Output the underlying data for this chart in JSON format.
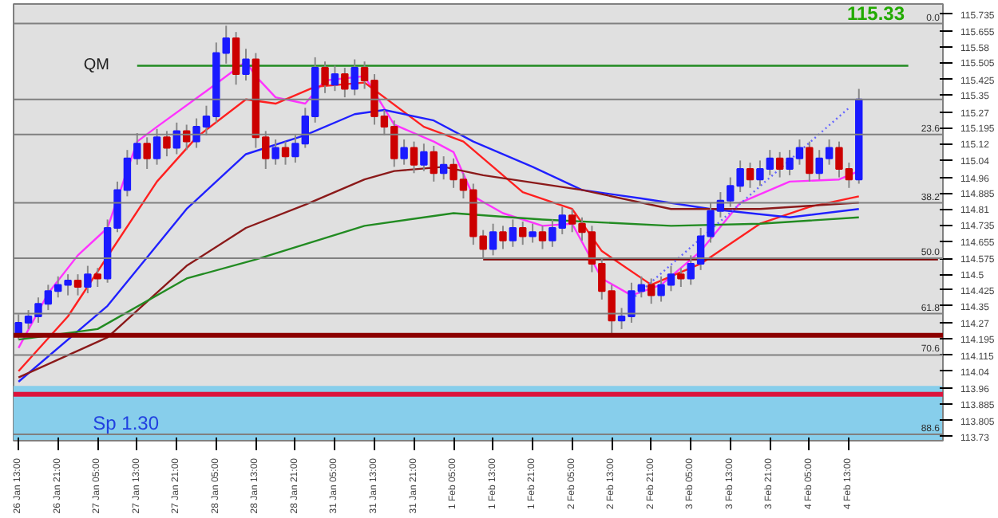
{
  "chart_data": {
    "type": "candlestick",
    "categories": [
      "26 Jan 13:00",
      null,
      null,
      null,
      "26 Jan 21:00",
      null,
      null,
      null,
      "27 Jan 05:00",
      null,
      null,
      null,
      "27 Jan 13:00",
      null,
      null,
      null,
      "27 Jan 21:00",
      null,
      null,
      null,
      "28 Jan 05:00",
      null,
      null,
      null,
      "28 Jan 13:00",
      null,
      null,
      null,
      "28 Jan 21:00",
      null,
      null,
      null,
      "31 Jan 05:00",
      null,
      null,
      null,
      "31 Jan 13:00",
      null,
      null,
      null,
      "31 Jan 21:00",
      null,
      null,
      null,
      "1 Feb 05:00",
      null,
      null,
      null,
      "1 Feb 13:00",
      null,
      null,
      null,
      "1 Feb 21:00",
      null,
      null,
      null,
      "2 Feb 05:00",
      null,
      null,
      null,
      "2 Feb 13:00",
      null,
      null,
      null,
      "2 Feb 21:00",
      null,
      null,
      null,
      "3 Feb 05:00",
      null,
      null,
      null,
      "3 Feb 13:00",
      null,
      null,
      null,
      "3 Feb 21:00",
      null,
      null,
      null,
      "4 Feb 05:00",
      null,
      null,
      null,
      "4 Feb 13:00",
      null,
      null,
      null,
      null,
      null,
      null,
      null,
      null,
      null
    ],
    "ohlc": [
      [
        114.22,
        114.31,
        114.19,
        114.27
      ],
      [
        114.27,
        114.33,
        114.24,
        114.3
      ],
      [
        114.3,
        114.39,
        114.27,
        114.36
      ],
      [
        114.36,
        114.45,
        114.33,
        114.42
      ],
      [
        114.42,
        114.49,
        114.39,
        114.45
      ],
      [
        114.45,
        114.5,
        114.4,
        114.47
      ],
      [
        114.47,
        114.5,
        114.4,
        114.44
      ],
      [
        114.44,
        114.54,
        114.41,
        114.5
      ],
      [
        114.5,
        114.53,
        114.44,
        114.48
      ],
      [
        114.48,
        114.76,
        114.46,
        114.72
      ],
      [
        114.72,
        114.94,
        114.7,
        114.9
      ],
      [
        114.9,
        115.09,
        114.87,
        115.05
      ],
      [
        115.05,
        115.17,
        115.02,
        115.12
      ],
      [
        115.12,
        115.15,
        115.0,
        115.05
      ],
      [
        115.05,
        115.19,
        115.02,
        115.15
      ],
      [
        115.15,
        115.18,
        115.06,
        115.1
      ],
      [
        115.1,
        115.22,
        115.07,
        115.18
      ],
      [
        115.18,
        115.21,
        115.09,
        115.13
      ],
      [
        115.13,
        115.24,
        115.1,
        115.2
      ],
      [
        115.2,
        115.3,
        115.16,
        115.25
      ],
      [
        115.25,
        115.6,
        115.22,
        115.55
      ],
      [
        115.55,
        115.68,
        115.5,
        115.62
      ],
      [
        115.62,
        115.65,
        115.4,
        115.45
      ],
      [
        115.45,
        115.57,
        115.42,
        115.52
      ],
      [
        115.52,
        115.55,
        115.1,
        115.15
      ],
      [
        115.15,
        115.18,
        115.0,
        115.05
      ],
      [
        115.05,
        115.14,
        115.02,
        115.1
      ],
      [
        115.1,
        115.13,
        115.02,
        115.06
      ],
      [
        115.06,
        115.16,
        115.03,
        115.12
      ],
      [
        115.12,
        115.29,
        115.1,
        115.25
      ],
      [
        115.25,
        115.53,
        115.22,
        115.48
      ],
      [
        115.48,
        115.51,
        115.36,
        115.4
      ],
      [
        115.4,
        115.49,
        115.37,
        115.45
      ],
      [
        115.45,
        115.48,
        115.34,
        115.38
      ],
      [
        115.38,
        115.52,
        115.35,
        115.48
      ],
      [
        115.48,
        115.51,
        115.38,
        115.42
      ],
      [
        115.42,
        115.45,
        115.21,
        115.25
      ],
      [
        115.25,
        115.28,
        115.16,
        115.2
      ],
      [
        115.2,
        115.23,
        115.01,
        115.05
      ],
      [
        115.05,
        115.14,
        115.02,
        115.1
      ],
      [
        115.1,
        115.13,
        114.98,
        115.02
      ],
      [
        115.02,
        115.12,
        114.99,
        115.08
      ],
      [
        115.08,
        115.11,
        114.94,
        114.98
      ],
      [
        114.98,
        115.06,
        114.95,
        115.02
      ],
      [
        115.02,
        115.05,
        114.91,
        114.95
      ],
      [
        114.95,
        114.98,
        114.86,
        114.9
      ],
      [
        114.9,
        114.93,
        114.64,
        114.68
      ],
      [
        114.68,
        114.71,
        114.58,
        114.62
      ],
      [
        114.62,
        114.74,
        114.59,
        114.7
      ],
      [
        114.7,
        114.73,
        114.62,
        114.66
      ],
      [
        114.66,
        114.76,
        114.63,
        114.72
      ],
      [
        114.72,
        114.75,
        114.64,
        114.68
      ],
      [
        114.68,
        114.74,
        114.65,
        114.7
      ],
      [
        114.7,
        114.73,
        114.62,
        114.66
      ],
      [
        114.66,
        114.76,
        114.63,
        114.72
      ],
      [
        114.72,
        114.82,
        114.69,
        114.78
      ],
      [
        114.78,
        114.81,
        114.7,
        114.74
      ],
      [
        114.74,
        114.77,
        114.66,
        114.7
      ],
      [
        114.7,
        114.73,
        114.51,
        114.55
      ],
      [
        114.55,
        114.58,
        114.38,
        114.42
      ],
      [
        114.42,
        114.45,
        114.22,
        114.28
      ],
      [
        114.28,
        114.34,
        114.24,
        114.3
      ],
      [
        114.3,
        114.46,
        114.27,
        114.42
      ],
      [
        114.42,
        114.49,
        114.39,
        114.45
      ],
      [
        114.45,
        114.48,
        114.36,
        114.4
      ],
      [
        114.4,
        114.49,
        114.37,
        114.45
      ],
      [
        114.45,
        114.54,
        114.42,
        114.5
      ],
      [
        114.5,
        114.53,
        114.44,
        114.48
      ],
      [
        114.48,
        114.59,
        114.45,
        114.55
      ],
      [
        114.55,
        114.72,
        114.52,
        114.68
      ],
      [
        114.68,
        114.84,
        114.65,
        114.8
      ],
      [
        114.8,
        114.89,
        114.77,
        114.85
      ],
      [
        114.85,
        114.96,
        114.82,
        114.92
      ],
      [
        114.92,
        115.04,
        114.89,
        115.0
      ],
      [
        115.0,
        115.03,
        114.91,
        114.95
      ],
      [
        114.95,
        115.04,
        114.92,
        115.0
      ],
      [
        115.0,
        115.09,
        114.97,
        115.05
      ],
      [
        115.05,
        115.08,
        114.96,
        115.0
      ],
      [
        115.0,
        115.09,
        114.97,
        115.05
      ],
      [
        115.05,
        115.14,
        115.02,
        115.1
      ],
      [
        115.1,
        115.13,
        114.94,
        114.98
      ],
      [
        114.98,
        115.09,
        114.95,
        115.05
      ],
      [
        115.05,
        115.14,
        115.02,
        115.1
      ],
      [
        115.1,
        115.13,
        114.96,
        115.0
      ],
      [
        115.0,
        115.03,
        114.91,
        114.95
      ],
      [
        114.95,
        115.38,
        114.93,
        115.33
      ],
      null,
      null,
      null,
      null,
      null,
      null,
      null,
      null
    ],
    "series": [
      {
        "type": "line",
        "color": "#ff33ff",
        "values": [
          114.15,
          null,
          null,
          114.41,
          null,
          null,
          114.59,
          null,
          null,
          114.72,
          null,
          null,
          115.13,
          null,
          115.2,
          null,
          null,
          null,
          null,
          115.37,
          null,
          null,
          null,
          115.51,
          115.44,
          null,
          115.34,
          null,
          null,
          115.31,
          null,
          115.42,
          null,
          null,
          null,
          115.44,
          null,
          null,
          115.21,
          null,
          null,
          null,
          115.13,
          null,
          115.08,
          null,
          114.87,
          null,
          null,
          114.79,
          null,
          null,
          null,
          114.73,
          null,
          null,
          114.74,
          null,
          null,
          114.48,
          null,
          null,
          114.4,
          null,
          null,
          114.45,
          null,
          null,
          null,
          114.61,
          null,
          null,
          null,
          114.84,
          null,
          null,
          null,
          null,
          114.94,
          null,
          null,
          null,
          null,
          114.95,
          null,
          114.99,
          null,
          null,
          null,
          null,
          null,
          null,
          null,
          null
        ]
      },
      {
        "type": "line",
        "color": "#ff2020",
        "values": [
          114.04,
          null,
          null,
          null,
          null,
          114.3,
          null,
          null,
          null,
          null,
          null,
          null,
          null,
          null,
          114.94,
          null,
          null,
          null,
          115.15,
          null,
          null,
          null,
          null,
          115.33,
          null,
          null,
          115.31,
          null,
          null,
          null,
          115.39,
          null,
          null,
          null,
          null,
          115.41,
          null,
          null,
          null,
          null,
          null,
          115.2,
          null,
          null,
          null,
          115.13,
          null,
          null,
          null,
          null,
          null,
          114.89,
          null,
          null,
          null,
          null,
          114.81,
          null,
          null,
          114.61,
          null,
          null,
          null,
          null,
          114.45,
          null,
          null,
          null,
          null,
          114.55,
          null,
          null,
          null,
          null,
          null,
          114.74,
          null,
          null,
          null,
          null,
          114.82,
          null,
          null,
          null,
          null,
          114.87,
          null,
          null,
          null,
          null,
          null,
          null,
          null,
          null
        ]
      },
      {
        "type": "line",
        "color": "#2020ff",
        "values": [
          113.99,
          null,
          null,
          null,
          null,
          null,
          null,
          null,
          null,
          114.35,
          null,
          null,
          null,
          null,
          null,
          null,
          null,
          114.81,
          null,
          null,
          null,
          null,
          null,
          115.07,
          null,
          null,
          null,
          null,
          null,
          115.16,
          null,
          null,
          null,
          null,
          115.26,
          null,
          null,
          115.28,
          null,
          null,
          null,
          null,
          115.23,
          null,
          null,
          null,
          115.13,
          null,
          null,
          null,
          null,
          null,
          115.01,
          null,
          null,
          null,
          null,
          114.9,
          null,
          null,
          null,
          null,
          null,
          114.86,
          null,
          null,
          null,
          null,
          null,
          null,
          114.81,
          null,
          null,
          null,
          null,
          null,
          null,
          null,
          114.77,
          null,
          null,
          null,
          null,
          null,
          null,
          114.81,
          null,
          null,
          null,
          null,
          null,
          null,
          null,
          null
        ]
      },
      {
        "type": "line",
        "color": "#8b1a1a",
        "values": [
          114.01,
          null,
          null,
          null,
          null,
          null,
          null,
          null,
          null,
          114.2,
          null,
          null,
          null,
          null,
          null,
          null,
          null,
          114.54,
          null,
          null,
          null,
          null,
          null,
          114.72,
          null,
          null,
          null,
          null,
          null,
          114.83,
          null,
          null,
          null,
          null,
          null,
          114.95,
          null,
          null,
          114.99,
          null,
          null,
          null,
          null,
          115.01,
          null,
          null,
          null,
          114.97,
          null,
          null,
          null,
          null,
          null,
          null,
          null,
          null,
          null,
          114.9,
          null,
          null,
          null,
          null,
          null,
          null,
          null,
          null,
          114.81,
          null,
          null,
          null,
          null,
          null,
          null,
          null,
          null,
          114.81,
          null,
          null,
          null,
          null,
          null,
          null,
          null,
          null,
          null,
          114.84,
          null,
          null,
          null,
          null,
          null,
          null,
          null,
          null
        ]
      },
      {
        "type": "line",
        "color": "#228b22",
        "values": [
          114.19,
          null,
          null,
          null,
          null,
          null,
          null,
          null,
          114.24,
          null,
          null,
          null,
          null,
          null,
          null,
          null,
          null,
          114.48,
          null,
          null,
          null,
          null,
          null,
          null,
          114.57,
          null,
          null,
          null,
          null,
          null,
          null,
          null,
          null,
          null,
          null,
          114.73,
          null,
          null,
          null,
          null,
          null,
          null,
          null,
          null,
          114.79,
          null,
          null,
          null,
          null,
          null,
          null,
          null,
          null,
          114.76,
          null,
          null,
          null,
          null,
          null,
          null,
          null,
          null,
          null,
          null,
          null,
          null,
          114.73,
          null,
          null,
          null,
          null,
          null,
          null,
          null,
          null,
          114.74,
          null,
          null,
          null,
          null,
          null,
          null,
          null,
          null,
          null,
          114.77,
          null,
          null,
          null,
          null,
          null,
          null,
          null,
          null
        ]
      },
      {
        "type": "line",
        "color": "#228b22",
        "values": [
          null,
          null,
          null,
          null,
          null,
          null,
          null,
          null,
          null,
          null,
          null,
          null,
          115.49,
          null,
          null,
          null,
          null,
          null,
          null,
          null,
          null,
          null,
          null,
          null,
          null,
          null,
          null,
          null,
          null,
          null,
          null,
          null,
          null,
          null,
          null,
          null,
          null,
          null,
          null,
          null,
          null,
          null,
          null,
          null,
          null,
          null,
          null,
          null,
          null,
          null,
          null,
          null,
          null,
          null,
          null,
          null,
          null,
          null,
          null,
          null,
          null,
          null,
          null,
          null,
          null,
          null,
          null,
          null,
          null,
          null,
          null,
          null,
          null,
          null,
          null,
          null,
          null,
          null,
          null,
          null,
          null,
          null,
          null,
          null,
          null,
          null,
          null,
          null,
          null,
          null,
          115.49,
          null,
          null,
          null
        ]
      },
      {
        "type": "line",
        "color": "#800000",
        "values": [
          null,
          null,
          null,
          null,
          null,
          null,
          null,
          null,
          null,
          null,
          null,
          null,
          null,
          null,
          null,
          null,
          null,
          null,
          null,
          null,
          null,
          null,
          null,
          null,
          null,
          null,
          null,
          null,
          null,
          null,
          null,
          null,
          null,
          null,
          null,
          null,
          null,
          null,
          null,
          null,
          null,
          null,
          null,
          null,
          null,
          null,
          null,
          114.57,
          null,
          null,
          null,
          null,
          null,
          null,
          null,
          null,
          null,
          null,
          null,
          null,
          null,
          null,
          null,
          null,
          null,
          null,
          null,
          null,
          null,
          null,
          null,
          null,
          null,
          null,
          null,
          null,
          null,
          null,
          null,
          null,
          null,
          null,
          null,
          null,
          null,
          null,
          null,
          null,
          null,
          null,
          null,
          null,
          null,
          114.57
        ]
      },
      {
        "type": "line",
        "color": "#6666ff",
        "line_style": "dotted",
        "values": [
          null,
          null,
          null,
          null,
          null,
          null,
          null,
          null,
          null,
          null,
          null,
          null,
          null,
          null,
          null,
          null,
          null,
          null,
          null,
          null,
          null,
          null,
          null,
          null,
          null,
          null,
          null,
          null,
          null,
          null,
          null,
          null,
          null,
          null,
          null,
          null,
          null,
          null,
          null,
          null,
          null,
          null,
          null,
          null,
          null,
          null,
          null,
          null,
          null,
          null,
          null,
          null,
          null,
          null,
          null,
          null,
          null,
          null,
          null,
          null,
          null,
          null,
          114.38,
          null,
          null,
          null,
          null,
          null,
          null,
          null,
          null,
          null,
          null,
          null,
          null,
          null,
          null,
          null,
          null,
          null,
          null,
          null,
          null,
          null,
          115.29,
          null,
          null,
          null,
          null,
          null,
          null,
          null,
          null,
          null
        ]
      }
    ],
    "ref_lines": [
      {
        "axis": "y",
        "value": 115.69,
        "color": "#808080"
      },
      {
        "axis": "y",
        "value": 115.33,
        "color": "#808080"
      },
      {
        "axis": "y",
        "value": 115.164,
        "color": "#808080"
      },
      {
        "axis": "y",
        "value": 114.839,
        "color": "#808080"
      },
      {
        "axis": "y",
        "value": 114.576,
        "color": "#808080"
      },
      {
        "axis": "y",
        "value": 114.313,
        "color": "#808080"
      },
      {
        "axis": "y",
        "value": 114.117,
        "color": "#808080"
      },
      {
        "axis": "y",
        "value": 113.74,
        "color": "#808080"
      },
      {
        "axis": "y",
        "value": 114.21,
        "color": "#8b0000"
      },
      {
        "axis": "y",
        "value": 113.93,
        "color": "#dc143c"
      }
    ],
    "bands": [
      {
        "axis": "y",
        "from": 113.71,
        "to": 113.97,
        "label": "Sp 1.30",
        "color": "#87ceeb"
      }
    ],
    "annotations": [
      "QM",
      "115.33",
      {
        "text": "0.0",
        "y": 115.69
      },
      {
        "text": "23.6",
        "y": 115.164
      },
      {
        "text": "38.2",
        "y": 114.839
      },
      {
        "text": "50.0",
        "y": 114.576
      },
      {
        "text": "61.8",
        "y": 114.313
      },
      {
        "text": "70.6",
        "y": 114.117
      },
      {
        "text": "88.6",
        "y": 113.74
      }
    ],
    "ylim": [
      113.71,
      115.783
    ],
    "yticks": [
      115.735,
      115.655,
      115.58,
      115.505,
      115.425,
      115.35,
      115.27,
      115.195,
      115.12,
      115.04,
      114.96,
      114.885,
      114.81,
      114.735,
      114.655,
      114.575,
      114.5,
      114.425,
      114.35,
      114.27,
      114.195,
      114.115,
      114.04,
      113.96,
      113.885,
      113.805,
      113.73
    ],
    "grid": false
  }
}
